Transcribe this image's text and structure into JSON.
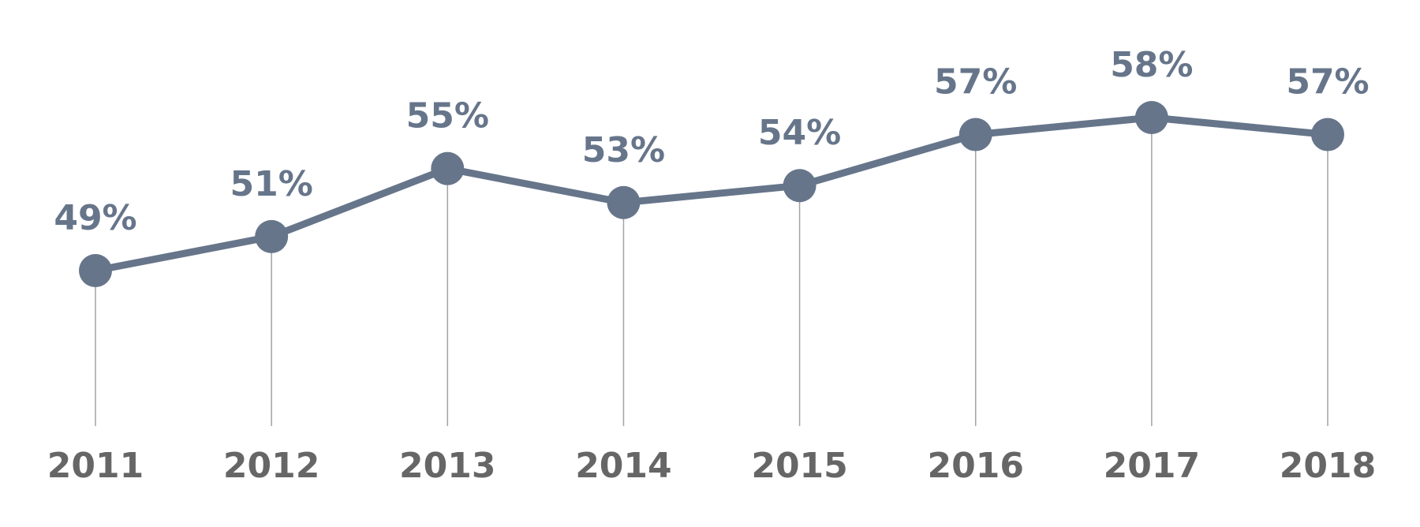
{
  "chart_data": {
    "type": "line",
    "title": "",
    "xlabel": "",
    "ylabel": "",
    "categories": [
      "2011",
      "2012",
      "2013",
      "2014",
      "2015",
      "2016",
      "2017",
      "2018"
    ],
    "series": [
      {
        "values": [
          49,
          51,
          55,
          53,
          54,
          57,
          58,
          57
        ],
        "data_labels": [
          "49%",
          "51%",
          "55%",
          "53%",
          "54%",
          "57%",
          "58%",
          "57%"
        ]
      }
    ],
    "ylim": [
      40,
      60
    ],
    "y_unit": "%",
    "grid": false,
    "legend": "none",
    "drop_lines": true
  },
  "colors": {
    "series": "#66758a",
    "drop_line": "#a3a3a3",
    "data_label": "#66758a",
    "tick_label": "#666666",
    "background": "#ffffff"
  }
}
